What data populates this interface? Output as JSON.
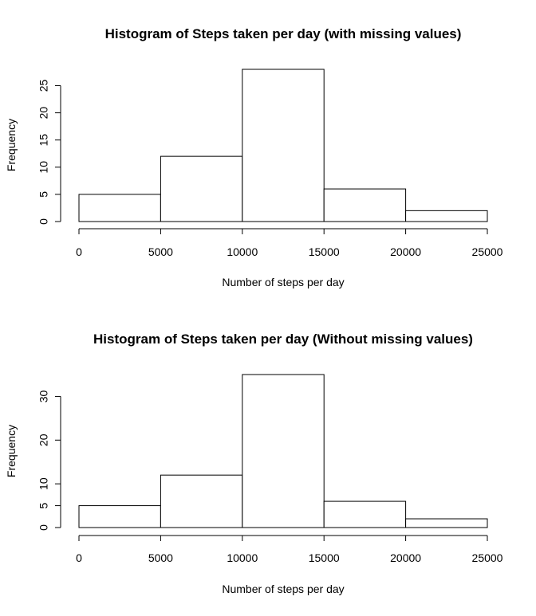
{
  "chart_data": [
    {
      "type": "bar",
      "title": "Histogram of Steps taken per day (with missing values)",
      "xlabel": "Number of steps per day",
      "ylabel": "Frequency",
      "bins": [
        [
          0,
          5000
        ],
        [
          5000,
          10000
        ],
        [
          10000,
          15000
        ],
        [
          15000,
          20000
        ],
        [
          20000,
          25000
        ]
      ],
      "values": [
        5,
        12,
        28,
        6,
        2
      ],
      "xticks": [
        0,
        5000,
        10000,
        15000,
        20000,
        25000
      ],
      "yticks": [
        0,
        5,
        10,
        15,
        20,
        25
      ],
      "xlim": [
        0,
        25000
      ],
      "ylim": [
        0,
        28
      ],
      "grid": false
    },
    {
      "type": "bar",
      "title": "Histogram of Steps taken per day (Without missing values)",
      "xlabel": "Number of steps per day",
      "ylabel": "Frequency",
      "bins": [
        [
          0,
          5000
        ],
        [
          5000,
          10000
        ],
        [
          10000,
          15000
        ],
        [
          15000,
          20000
        ],
        [
          20000,
          25000
        ]
      ],
      "values": [
        5,
        12,
        35,
        6,
        2
      ],
      "xticks": [
        0,
        5000,
        10000,
        15000,
        20000,
        25000
      ],
      "yticks": [
        0,
        5,
        10,
        20,
        30
      ],
      "xlim": [
        0,
        25000
      ],
      "ylim": [
        0,
        35
      ],
      "grid": false
    }
  ],
  "colors": {
    "bar_fill": "#ffffff",
    "bar_stroke": "#000000",
    "background": "#ffffff"
  }
}
